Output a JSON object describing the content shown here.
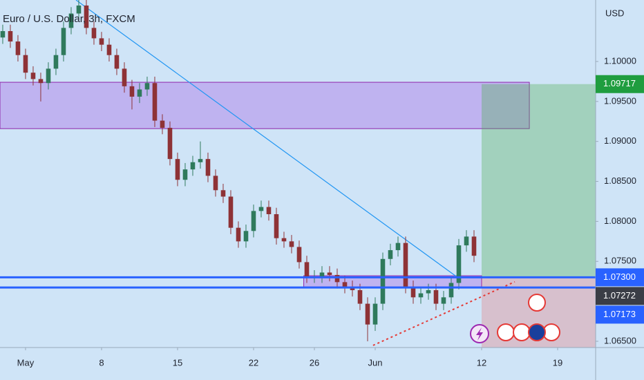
{
  "chart_data": {
    "type": "candlestick",
    "title": "Euro / U.S. Dollar, 3h, FXCM",
    "currency": "USD",
    "up_color": "#2f7a5c",
    "down_color": "#8e3236",
    "xlim": [
      -1.68,
      37.5
    ],
    "ylim": [
      1.06422,
      1.10769
    ],
    "xticks": [
      {
        "value": 0,
        "label": "May"
      },
      {
        "value": 5,
        "label": "8"
      },
      {
        "value": 10,
        "label": "15"
      },
      {
        "value": 15,
        "label": "22"
      },
      {
        "value": 19,
        "label": "26"
      },
      {
        "value": 23,
        "label": "Jun"
      },
      {
        "value": 30,
        "label": "12"
      },
      {
        "value": 35,
        "label": "19"
      }
    ],
    "yticks": [
      {
        "value": 1.065,
        "label": "1.06500"
      },
      {
        "value": 1.075,
        "label": "1.07500"
      },
      {
        "value": 1.08,
        "label": "1.08000"
      },
      {
        "value": 1.085,
        "label": "1.08500"
      },
      {
        "value": 1.09,
        "label": "1.09000"
      },
      {
        "value": 1.095,
        "label": "1.09500"
      },
      {
        "value": 1.1,
        "label": "1.10000"
      }
    ],
    "x": [
      -1.5,
      -1,
      -0.5,
      0,
      0.5,
      1,
      1.5,
      2,
      2.5,
      3,
      3.5,
      4,
      4.5,
      5,
      5.5,
      6,
      6.5,
      7,
      7.5,
      8,
      8.5,
      9,
      9.5,
      10,
      10.5,
      11,
      11.5,
      12,
      12.5,
      13,
      13.5,
      14,
      14.5,
      15,
      15.5,
      16,
      16.5,
      17,
      17.5,
      18,
      18.5,
      19,
      19.5,
      20,
      20.5,
      21,
      21.5,
      22,
      22.5,
      23,
      23.5,
      24,
      24.5,
      25,
      25.5,
      26,
      26.5,
      27,
      27.5,
      28,
      28.5,
      29,
      29.5
    ],
    "open": [
      1.103,
      1.1038,
      1.1025,
      1.1008,
      1.0986,
      1.0978,
      1.0973,
      1.0991,
      1.1008,
      1.1042,
      1.106,
      1.107,
      1.1042,
      1.1029,
      1.1021,
      1.1008,
      1.0991,
      1.0969,
      1.0956,
      1.0965,
      1.0973,
      1.0926,
      1.0917,
      1.0878,
      1.0852,
      1.0865,
      1.0874,
      1.0878,
      1.0857,
      1.0839,
      1.0831,
      1.0792,
      1.0775,
      1.0788,
      1.0813,
      1.0818,
      1.0809,
      1.0779,
      1.0775,
      1.0768,
      1.0749,
      1.0731,
      1.0731,
      1.0736,
      1.0733,
      1.0724,
      1.0718,
      1.0714,
      1.0697,
      1.0671,
      1.0697,
      1.0753,
      1.0764,
      1.0773,
      1.0718,
      1.0705,
      1.071,
      1.0714,
      1.0697,
      1.0705,
      1.0723,
      1.077,
      1.0781
    ],
    "high": [
      1.1046,
      1.1046,
      1.1033,
      1.1016,
      1.0994,
      1.0986,
      1.0999,
      1.1016,
      1.105,
      1.1068,
      1.1078,
      1.1078,
      1.105,
      1.1037,
      1.1029,
      1.1016,
      1.0999,
      1.0977,
      1.0973,
      1.0981,
      1.0981,
      1.0934,
      1.0925,
      1.0886,
      1.0873,
      1.0882,
      1.09,
      1.0886,
      1.0865,
      1.0847,
      1.0839,
      1.08,
      1.0796,
      1.0821,
      1.0826,
      1.0826,
      1.0817,
      1.0787,
      1.0783,
      1.0776,
      1.0757,
      1.0739,
      1.0744,
      1.0744,
      1.0741,
      1.0732,
      1.0726,
      1.0722,
      1.0705,
      1.0705,
      1.0761,
      1.0772,
      1.0781,
      1.0781,
      1.0726,
      1.0718,
      1.0722,
      1.0722,
      1.0713,
      1.0731,
      1.0778,
      1.0789,
      1.0789
    ],
    "low": [
      1.1022,
      1.1017,
      1.1,
      1.0978,
      1.097,
      1.095,
      1.0965,
      1.0983,
      1.1,
      1.1034,
      1.1052,
      1.1034,
      1.1021,
      1.1013,
      1.1,
      1.0983,
      1.0961,
      1.094,
      1.0948,
      1.0957,
      1.0918,
      1.0909,
      1.087,
      1.0844,
      1.0844,
      1.0857,
      1.0866,
      1.0849,
      1.0831,
      1.0823,
      1.0784,
      1.0767,
      1.0767,
      1.078,
      1.0805,
      1.0801,
      1.0771,
      1.0767,
      1.076,
      1.0741,
      1.0723,
      1.0723,
      1.0723,
      1.0725,
      1.0716,
      1.071,
      1.0706,
      1.0689,
      1.065,
      1.0663,
      1.0689,
      1.0745,
      1.0756,
      1.071,
      1.0697,
      1.0697,
      1.0702,
      1.0689,
      1.0689,
      1.0697,
      1.0715,
      1.0762,
      1.0749
    ],
    "close": [
      1.1038,
      1.1025,
      1.1008,
      1.0986,
      1.0978,
      1.0973,
      1.0991,
      1.1008,
      1.1042,
      1.106,
      1.107,
      1.1042,
      1.1029,
      1.1021,
      1.1008,
      1.0991,
      1.0969,
      1.0956,
      1.0965,
      1.0973,
      1.0926,
      1.0917,
      1.0878,
      1.0852,
      1.0865,
      1.0874,
      1.0878,
      1.0857,
      1.0839,
      1.0831,
      1.0792,
      1.0775,
      1.0788,
      1.0813,
      1.0818,
      1.0809,
      1.0779,
      1.0775,
      1.0768,
      1.0749,
      1.0731,
      1.0731,
      1.0736,
      1.0733,
      1.0724,
      1.0718,
      1.0714,
      1.0697,
      1.0671,
      1.0697,
      1.0753,
      1.0764,
      1.0773,
      1.0718,
      1.0705,
      1.071,
      1.0714,
      1.0697,
      1.0705,
      1.0723,
      1.077,
      1.0781,
      1.0757
    ],
    "zones": [
      {
        "from": 1.0916,
        "to": 1.0974,
        "x": [
          -1.68,
          33.14
        ]
      },
      {
        "from": 1.0718,
        "to": 1.0732,
        "x": [
          18.3,
          30
        ]
      }
    ],
    "position": {
      "entry": 1.073,
      "target": 1.09717,
      "stop": 1.06422,
      "x": [
        30,
        37.5
      ]
    },
    "trendlines": [
      {
        "x": [
          3.32,
          28.32
        ],
        "y": [
          1.10769,
          1.07313
        ],
        "color": "#2196f3",
        "dashed": false
      },
      {
        "x": [
          22.86,
          32.18
        ],
        "y": [
          1.06449,
          1.07244
        ],
        "color": "#e53935",
        "dashed": true
      }
    ],
    "levels": [
      {
        "value": 1.09717,
        "label": "1.09717",
        "color": "#1f9d3f",
        "line": false
      },
      {
        "value": 1.073,
        "label": "1.07300",
        "color": "#2962ff",
        "line": true
      },
      {
        "value": 1.07272,
        "label": "1.07272",
        "color": "#3a3d46",
        "line": false
      },
      {
        "value": 1.07173,
        "label": "1.07173",
        "color": "#2962ff",
        "line": true
      }
    ]
  }
}
